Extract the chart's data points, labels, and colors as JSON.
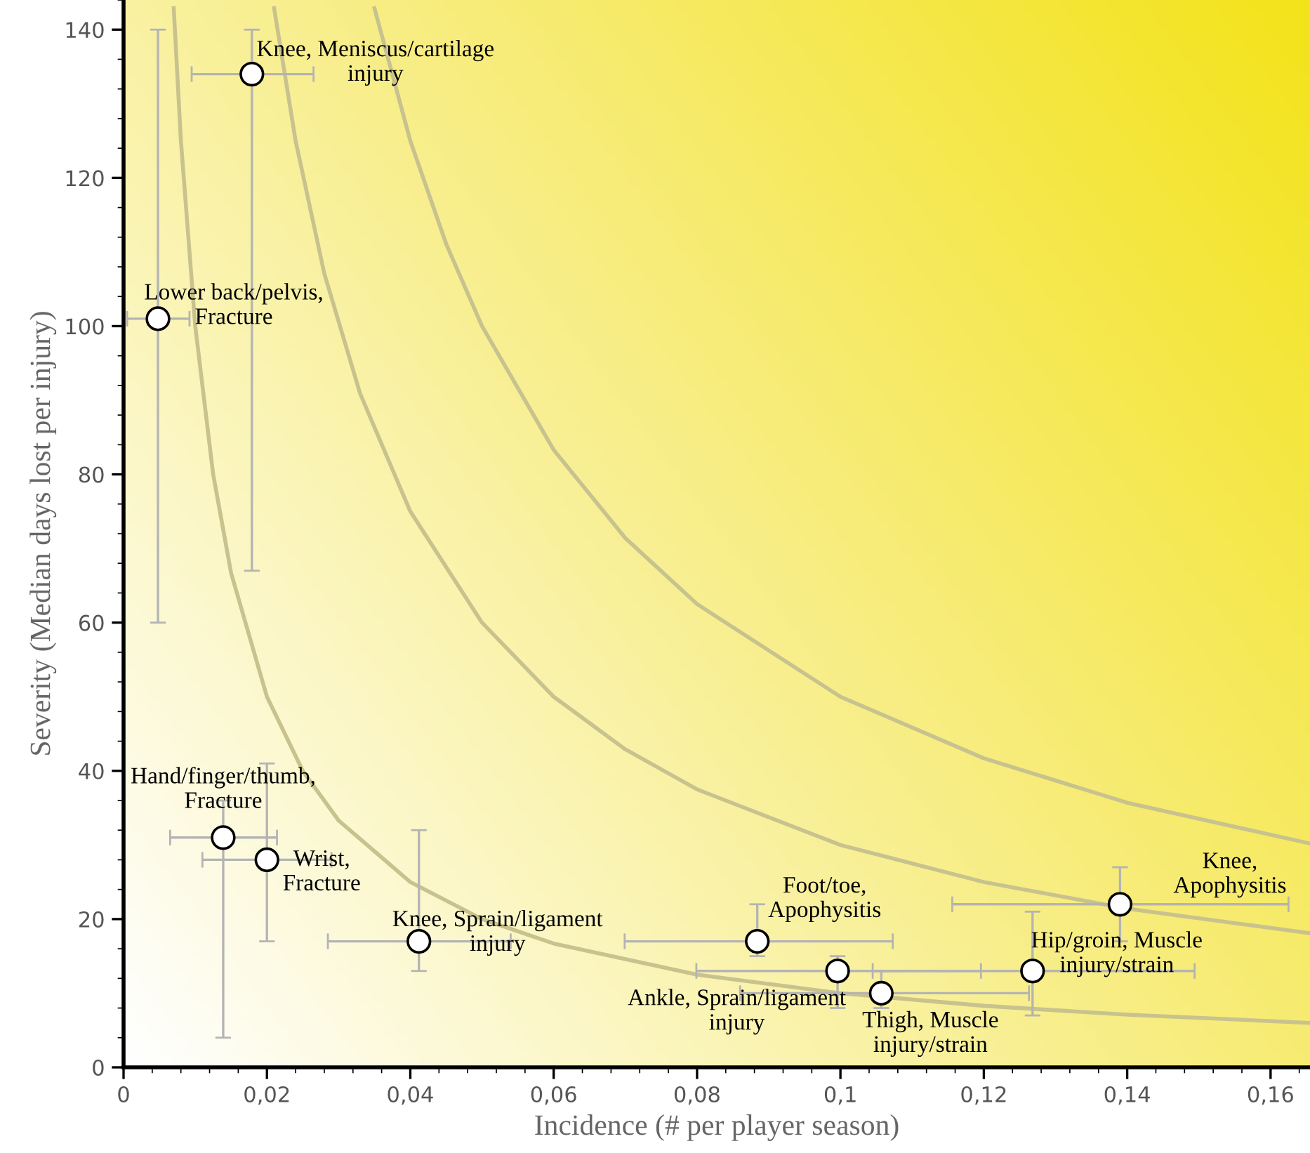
{
  "chart_data": {
    "type": "scatter",
    "xlabel": "Incidence (# per player season)",
    "ylabel": "Severity (Median days lost per injury)",
    "xlim": [
      0,
      0.1655
    ],
    "ylim": [
      0,
      144
    ],
    "xticks": [
      {
        "value": 0,
        "label": "0"
      },
      {
        "value": 0.02,
        "label": "0,02"
      },
      {
        "value": 0.04,
        "label": "0,04"
      },
      {
        "value": 0.06,
        "label": "0,06"
      },
      {
        "value": 0.08,
        "label": "0,08"
      },
      {
        "value": 0.1,
        "label": "0,1"
      },
      {
        "value": 0.12,
        "label": "0,12"
      },
      {
        "value": 0.14,
        "label": "0,14"
      },
      {
        "value": 0.16,
        "label": "0,16"
      }
    ],
    "yticks": [
      0,
      20,
      40,
      60,
      80,
      100,
      120,
      140
    ],
    "grid": false,
    "legend": false,
    "marker": "circle",
    "series": [
      {
        "type": "line",
        "marker": "none",
        "color": "#c8c28e",
        "x": [
          0.007,
          0.008,
          0.01,
          0.0125,
          0.015,
          0.02,
          0.025,
          0.03,
          0.04,
          0.05,
          0.06,
          0.08,
          0.1,
          0.12,
          0.14,
          0.1655
        ],
        "values": [
          142.9,
          125,
          100,
          80,
          66.7,
          50,
          40,
          33.3,
          25,
          20,
          16.7,
          12.5,
          10,
          8.3,
          7.1,
          6.0
        ]
      },
      {
        "type": "line",
        "marker": "none",
        "color": "#c8c28e",
        "x": [
          0.021,
          0.024,
          0.028,
          0.033,
          0.04,
          0.05,
          0.06,
          0.07,
          0.08,
          0.1,
          0.12,
          0.14,
          0.1655
        ],
        "values": [
          142.9,
          125,
          107.1,
          90.9,
          75,
          60,
          50,
          42.9,
          37.5,
          30,
          25,
          21.4,
          18.1
        ]
      },
      {
        "type": "line",
        "marker": "none",
        "color": "#c8c28e",
        "x": [
          0.035,
          0.04,
          0.045,
          0.05,
          0.06,
          0.07,
          0.08,
          0.1,
          0.12,
          0.14,
          0.1655
        ],
        "values": [
          142.9,
          125,
          111.1,
          100,
          83.3,
          71.4,
          62.5,
          50,
          41.7,
          35.7,
          30.2
        ]
      },
      {
        "color": "#ffffff",
        "x": [
          0.0179,
          0.0048,
          0.0139,
          0.02,
          0.0412,
          0.0884,
          0.0996,
          0.1057,
          0.1268,
          0.139
        ],
        "values": [
          134,
          101,
          31,
          28,
          17,
          17,
          13,
          10,
          13,
          22
        ],
        "xerrors": [
          [
            0.0095,
            0.0265
          ],
          [
            0.0005,
            0.0092
          ],
          [
            0.0065,
            0.0214
          ],
          [
            0.011,
            0.029
          ],
          [
            0.0285,
            0.054
          ],
          [
            0.0699,
            0.1073
          ],
          [
            0.0799,
            0.1196
          ],
          [
            0.086,
            0.1263
          ],
          [
            0.1045,
            0.1494
          ],
          [
            0.1156,
            0.1625
          ]
        ],
        "errors": [
          [
            67,
            140
          ],
          [
            60,
            140
          ],
          [
            4,
            36
          ],
          [
            17,
            41
          ],
          [
            13,
            32
          ],
          [
            15,
            22
          ],
          [
            8,
            15
          ],
          [
            8,
            13
          ],
          [
            7,
            21
          ],
          [
            17,
            27
          ]
        ]
      }
    ],
    "annotations": [
      {
        "text": "Knee, Meniscus/cartilage\ninjury",
        "x": 0.0179,
        "y": 134
      },
      {
        "text": "Lower back/pelvis,\nFracture",
        "x": 0.0048,
        "y": 101
      },
      {
        "text": "Hand/finger/thumb,\nFracture",
        "x": 0.0139,
        "y": 31
      },
      {
        "text": "Wrist,\nFracture",
        "x": 0.02,
        "y": 28
      },
      {
        "text": "Knee, Sprain/ligament\ninjury",
        "x": 0.0412,
        "y": 17
      },
      {
        "text": "Foot/toe,\nApophysitis",
        "x": 0.0884,
        "y": 17
      },
      {
        "text": "Ankle, Sprain/ligament\ninjury",
        "x": 0.0996,
        "y": 13
      },
      {
        "text": "Thigh, Muscle\ninjury/strain",
        "x": 0.1057,
        "y": 10
      },
      {
        "text": "Hip/groin, Muscle\ninjury/strain",
        "x": 0.1268,
        "y": 13
      },
      {
        "text": "Knee,\nApophysitis",
        "x": 0.139,
        "y": 22
      }
    ]
  }
}
